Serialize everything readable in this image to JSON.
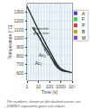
{
  "chart_data": {
    "type": "line",
    "xlabel": "Time (s)",
    "ylabel": "Temperature [°C]",
    "log": "x",
    "grid": true,
    "xlim": [
      1,
      10000
    ],
    "ylim": [
      520,
      1400
    ],
    "xticks": [
      1,
      10,
      100,
      1000,
      {
        "value": 10000,
        "label": "10⁴"
      }
    ],
    "yticks": [
      600,
      700,
      800,
      900,
      1000,
      1100,
      1200,
      1300
    ],
    "bands": {
      "color": "#b8d8e8",
      "pairs": [
        [
          1.0,
          1.4
        ],
        [
          1.8,
          2.5
        ],
        [
          3.2,
          4.5
        ],
        [
          5.5,
          7.5
        ],
        [
          9,
          13
        ],
        [
          16,
          22
        ],
        [
          28,
          38
        ],
        [
          48,
          65
        ],
        [
          80,
          110
        ],
        [
          140,
          190
        ],
        [
          240,
          320
        ],
        [
          400,
          540
        ],
        [
          680,
          900
        ],
        [
          1100,
          1500
        ],
        [
          1900,
          2600
        ],
        [
          3200,
          4300
        ],
        [
          5500,
          7500
        ]
      ]
    },
    "series": [
      {
        "x": [
          1,
          1.5,
          2,
          3,
          5,
          8,
          13,
          20,
          32,
          55,
          90,
          150,
          260,
          450,
          800,
          1500,
          3000,
          6000
        ],
        "values": [
          1370,
          1320,
          1280,
          1230,
          1175,
          1125,
          1075,
          1025,
          975,
          920,
          870,
          815,
          755,
          705,
          665,
          640,
          625,
          618
        ],
        "color": "#1a1a1a",
        "line_style": "solid"
      },
      {
        "x": [
          3,
          5,
          8,
          13,
          20,
          32,
          55,
          90,
          150,
          260,
          450,
          800,
          1500,
          3000,
          6000,
          10000
        ],
        "values": [
          1130,
          1090,
          1050,
          1010,
          965,
          920,
          870,
          825,
          775,
          725,
          680,
          645,
          628,
          618,
          612,
          610
        ],
        "color": "#1a1a1a",
        "line_style": "solid"
      },
      {
        "x": [
          8,
          13,
          20,
          32,
          55,
          90,
          150,
          260,
          450,
          800
        ],
        "values": [
          1060,
          1020,
          975,
          930,
          880,
          835,
          785,
          735,
          690,
          655
        ],
        "color": "#333333",
        "line_style": "dashed"
      },
      {
        "x": [
          13,
          20,
          32,
          55,
          90,
          150,
          260,
          450,
          800,
          1500
        ],
        "values": [
          1000,
          960,
          915,
          865,
          820,
          770,
          720,
          678,
          648,
          632
        ],
        "color": "#333333",
        "line_style": "dashed"
      },
      {
        "x": [
          20,
          32,
          55,
          90,
          150,
          260,
          450,
          800,
          1500
        ],
        "values": [
          940,
          900,
          855,
          808,
          760,
          712,
          668,
          640,
          628
        ],
        "color": "#333333",
        "line_style": "dashed"
      },
      {
        "x": [
          32,
          55,
          90,
          150,
          260,
          450,
          800,
          1500,
          3000
        ],
        "values": [
          880,
          838,
          795,
          750,
          705,
          665,
          638,
          625,
          618
        ],
        "color": "#333333",
        "line_style": "dashed"
      }
    ],
    "annotations": [
      {
        "text": "Austenite\ngrain size",
        "x": 18,
        "y": 1085
      },
      {
        "text": "Ac₃",
        "x": 22,
        "y": 810
      },
      {
        "text": "Ac₁",
        "x": 12,
        "y": 720
      }
    ],
    "legend_items": [
      {
        "label": "A",
        "color": "#4444cc"
      },
      {
        "label": "F",
        "color": "#44cc44"
      },
      {
        "label": "P",
        "color": "#cc4444"
      },
      {
        "label": "B",
        "color": "#ccaa00"
      },
      {
        "label": "M",
        "color": "#8844cc"
      }
    ],
    "caption": "The numbers shown on the dashed curves are\nJOMINY equivalent grain size values."
  }
}
